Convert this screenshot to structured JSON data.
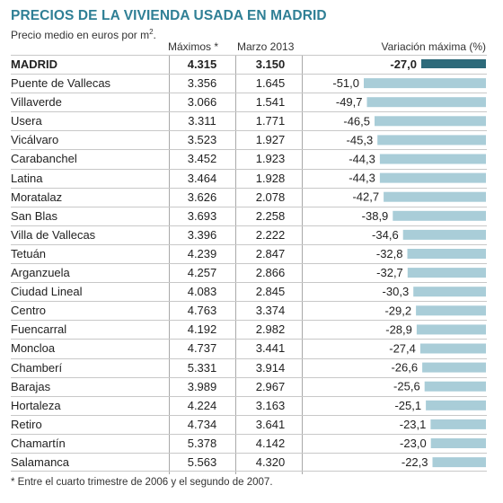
{
  "header": {
    "title": "PRECIOS DE LA VIVIENDA USADA EN MADRID",
    "subtitle": "Precio medio en euros por m",
    "subtitle_sup": "2",
    "subtitle_end": "."
  },
  "columns": {
    "max": "Máximos *",
    "mar": "Marzo 2013",
    "var": "Variación máxima (%)"
  },
  "footnote": "* Entre el cuarto trimestre de 2006 y el segundo de 2007.",
  "colors": {
    "title": "#2f7f95",
    "bar_total": "#2d6a7a",
    "bar": "#a9cdd8"
  },
  "chart_data": {
    "type": "bar",
    "orientation": "horizontal",
    "title": "PRECIOS DE LA VIVIENDA USADA EN MADRID",
    "subtitle": "Precio medio en euros por m2.",
    "categories": [
      "MADRID",
      "Puente de Vallecas",
      "Villaverde",
      "Usera",
      "Vicálvaro",
      "Carabanchel",
      "Latina",
      "Moratalaz",
      "San Blas",
      "Villa de Vallecas",
      "Tetuán",
      "Arganzuela",
      "Ciudad Lineal",
      "Centro",
      "Fuencarral",
      "Moncloa",
      "Chamberí",
      "Barajas",
      "Hortaleza",
      "Retiro",
      "Chamartín",
      "Salamanca"
    ],
    "maximos": [
      "4.315",
      "3.356",
      "3.066",
      "3.311",
      "3.523",
      "3.452",
      "3.464",
      "3.626",
      "3.693",
      "3.396",
      "4.239",
      "4.257",
      "4.083",
      "4.763",
      "4.192",
      "4.737",
      "5.331",
      "3.989",
      "4.224",
      "4.734",
      "5.378",
      "5.563"
    ],
    "marzo_2013": [
      "3.150",
      "1.645",
      "1.541",
      "1.771",
      "1.927",
      "1.923",
      "1.928",
      "2.078",
      "2.258",
      "2.222",
      "2.847",
      "2.866",
      "2.845",
      "3.374",
      "2.982",
      "3.441",
      "3.914",
      "2.967",
      "3.163",
      "3.641",
      "4.142",
      "4.320"
    ],
    "variacion_labels": [
      "-27,0",
      "-51,0",
      "-49,7",
      "-46,5",
      "-45,3",
      "-44,3",
      "-44,3",
      "-42,7",
      "-38,9",
      "-34,6",
      "-32,8",
      "-32,7",
      "-30,3",
      "-29,2",
      "-28,9",
      "-27,4",
      "-26,6",
      "-25,6",
      "-25,1",
      "-23,1",
      "-23,0",
      "-22,3"
    ],
    "variacion": [
      -27.0,
      -51.0,
      -49.7,
      -46.5,
      -45.3,
      -44.3,
      -44.3,
      -42.7,
      -38.9,
      -34.6,
      -32.8,
      -32.7,
      -30.3,
      -29.2,
      -28.9,
      -27.4,
      -26.6,
      -25.6,
      -25.1,
      -23.1,
      -23.0,
      -22.3
    ],
    "xlabel": "Variación máxima (%)",
    "xlim": [
      -51,
      0
    ],
    "footnote": "* Entre el cuarto trimestre de 2006 y el segundo de 2007."
  }
}
